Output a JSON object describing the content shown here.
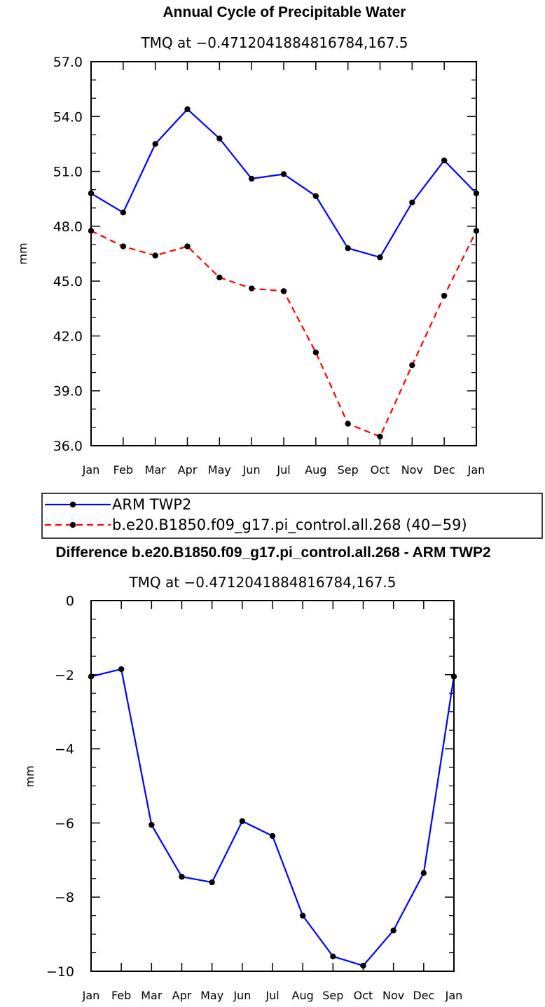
{
  "chart_data": [
    {
      "type": "line",
      "title": "Annual Cycle of Precipitable Water",
      "subtitle": "TMQ at −0.4712041884816784,167.5",
      "xlabel": "",
      "ylabel": "mm",
      "categories": [
        "Jan",
        "Feb",
        "Mar",
        "Apr",
        "May",
        "Jun",
        "Jul",
        "Aug",
        "Sep",
        "Oct",
        "Nov",
        "Dec",
        "Jan"
      ],
      "ylim": [
        36.0,
        57.0
      ],
      "yticks": [
        "36.0",
        "39.0",
        "42.0",
        "45.0",
        "48.0",
        "51.0",
        "54.0",
        "57.0"
      ],
      "series": [
        {
          "name": "ARM TWP2",
          "color": "#0000ff",
          "dash": "solid",
          "values": [
            49.8,
            48.75,
            52.5,
            54.4,
            52.8,
            50.6,
            50.85,
            49.65,
            46.8,
            46.3,
            49.3,
            51.6,
            49.8
          ]
        },
        {
          "name": "b.e20.B1850.f09_g17.pi_control.all.268 (40−59)",
          "color": "#ff0000",
          "dash": "dashed",
          "values": [
            47.75,
            46.9,
            46.4,
            46.9,
            45.2,
            44.6,
            44.45,
            41.1,
            37.2,
            36.5,
            40.4,
            44.2,
            47.75
          ]
        }
      ],
      "legend_position": "below"
    },
    {
      "type": "line",
      "title": "Difference b.e20.B1850.f09_g17.pi_control.all.268 - ARM TWP2",
      "subtitle": "TMQ at −0.4712041884816784,167.5",
      "xlabel": "",
      "ylabel": "mm",
      "categories": [
        "Jan",
        "Feb",
        "Mar",
        "Apr",
        "May",
        "Jun",
        "Jul",
        "Aug",
        "Sep",
        "Oct",
        "Nov",
        "Dec",
        "Jan"
      ],
      "ylim": [
        -10,
        0
      ],
      "yticks": [
        "−10",
        "−8",
        "−6",
        "−4",
        "−2",
        "0"
      ],
      "series": [
        {
          "color": "#0000ff",
          "dash": "solid",
          "values": [
            -2.05,
            -1.85,
            -6.05,
            -7.45,
            -7.6,
            -5.95,
            -6.35,
            -8.5,
            -9.6,
            -9.85,
            -8.9,
            -7.35,
            -2.05
          ]
        }
      ]
    }
  ]
}
